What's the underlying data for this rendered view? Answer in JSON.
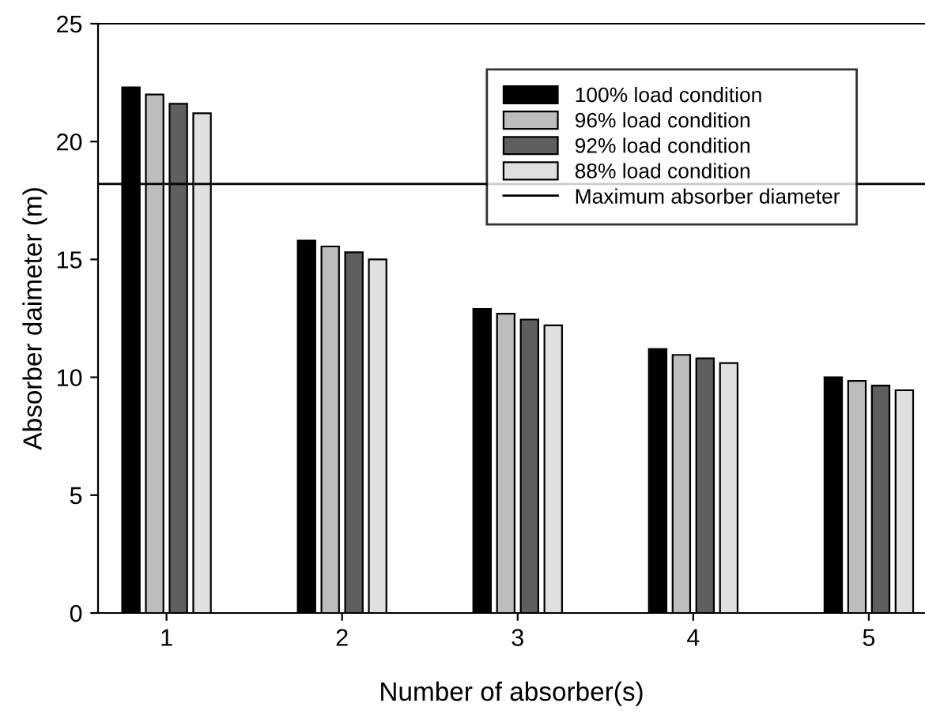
{
  "chart_data": {
    "type": "bar",
    "xlabel": "Number of absorber(s)",
    "ylabel": "Absorber daimeter (m)",
    "categories": [
      "1",
      "2",
      "3",
      "4",
      "5"
    ],
    "series": [
      {
        "name": "100% load condition",
        "color": "#000000",
        "values": [
          22.3,
          15.8,
          12.9,
          11.2,
          10.0
        ]
      },
      {
        "name": "96% load condition",
        "color": "#bdbdbd",
        "values": [
          22.0,
          15.55,
          12.7,
          10.95,
          9.85
        ]
      },
      {
        "name": "92% load condition",
        "color": "#5f5f5f",
        "values": [
          21.6,
          15.3,
          12.45,
          10.8,
          9.65
        ]
      },
      {
        "name": "88% load condition",
        "color": "#e0e0e0",
        "values": [
          21.2,
          15.0,
          12.2,
          10.6,
          9.45
        ]
      }
    ],
    "ref_lines": [
      {
        "axis": "y",
        "value": 18.2,
        "label": "Maximum absorber diameter",
        "color": "#000000"
      }
    ],
    "ylim": [
      0,
      25
    ],
    "yticks": [
      0,
      5,
      10,
      15,
      20,
      25
    ],
    "grid": false,
    "legend": "top right"
  }
}
